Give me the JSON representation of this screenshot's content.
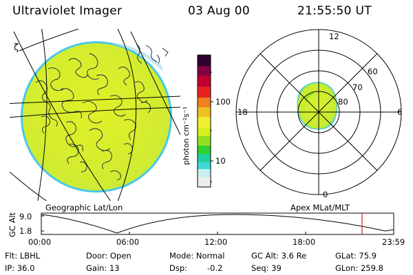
{
  "header": {
    "instrument": "Ultraviolet Imager",
    "date": "03 Aug 00",
    "time": "21:55:50 UT"
  },
  "left_panel": {
    "caption": "Geographic Lat/Lon",
    "corner_mark": "ζ"
  },
  "colorbar": {
    "unit_label": "photon cm⁻²s⁻¹",
    "tick_labels": [
      "100",
      "10"
    ],
    "colors": [
      "#e8e8e8",
      "#c8f0f0",
      "#40d8d8",
      "#20d0a0",
      "#30d030",
      "#90e020",
      "#d8f020",
      "#f0f030",
      "#f0c020",
      "#f08020",
      "#e82020",
      "#c00030",
      "#800040",
      "#300030"
    ]
  },
  "polar_panel": {
    "caption": "Apex MLat/MLT",
    "mlt_labels": {
      "top": "12",
      "right": "6",
      "bottom": "0",
      "left": "18"
    },
    "lat_labels": [
      "60",
      "70",
      "80"
    ]
  },
  "altitude_plot": {
    "ylabel": "GC Alt",
    "yticks": [
      "9.0",
      "1.8"
    ],
    "xticks": [
      "00:00",
      "06:00",
      "12:00",
      "18:00",
      "23:59"
    ],
    "current_marker_color": "#cc2222"
  },
  "info": {
    "flt": "Flt: LBHL",
    "door": "Door: Open",
    "mode": "Mode: Normal",
    "gc_alt": "GC Alt: 3.6 Re",
    "glat": "GLat: 75.9",
    "ip": "IP: 36.0",
    "gain": "Gain: 13",
    "dsp_label": "Dsp:",
    "dsp_value": "-0.2",
    "seq": "Seq: 39",
    "glon": "GLon: 259.8"
  },
  "colors": {
    "aurora_fill": "#d8f030",
    "aurora_edge": "#40c8e0",
    "line": "#000000"
  }
}
